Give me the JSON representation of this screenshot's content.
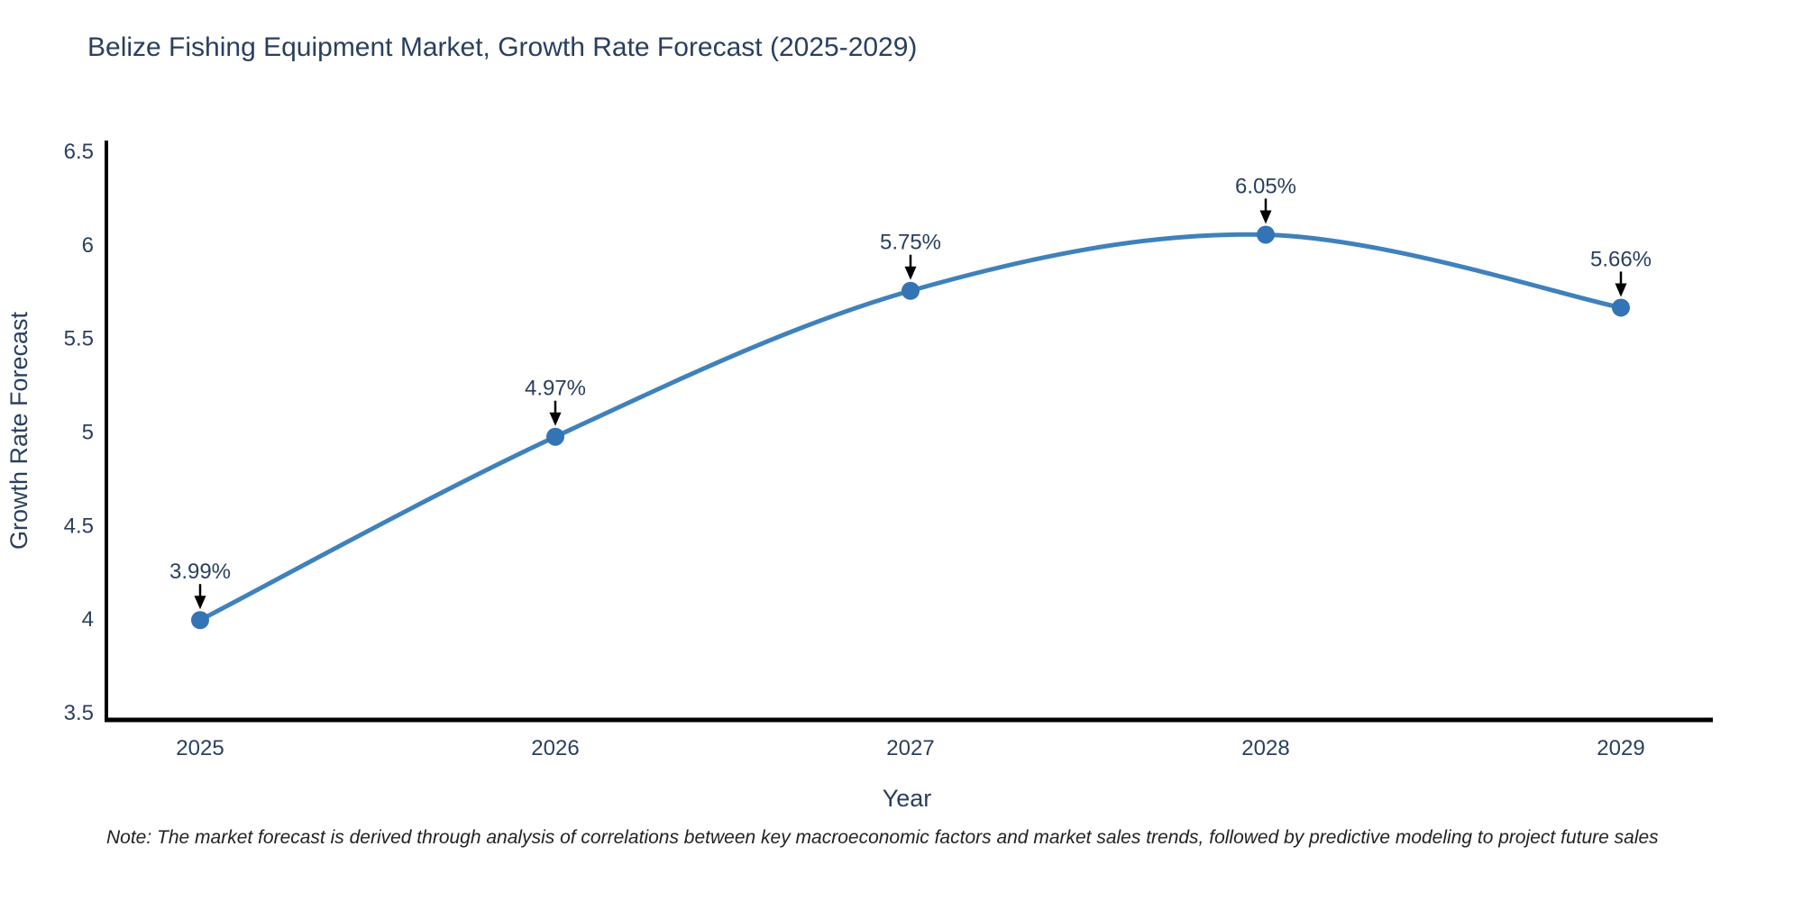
{
  "chart_data": {
    "type": "line",
    "title": "Belize Fishing Equipment Market, Growth Rate Forecast (2025-2029)",
    "xlabel": "Year",
    "ylabel": "Growth Rate Forecast",
    "categories": [
      "2025",
      "2026",
      "2027",
      "2028",
      "2029"
    ],
    "series": [
      {
        "name": "Growth Rate Forecast",
        "values": [
          3.99,
          4.97,
          5.75,
          6.05,
          5.66
        ]
      }
    ],
    "data_labels": [
      "3.99%",
      "4.97%",
      "5.75%",
      "6.05%",
      "5.66%"
    ],
    "ylim": [
      3.5,
      6.5
    ],
    "yticks": [
      6.5,
      6,
      5.5,
      5,
      4.5,
      4,
      3.5
    ],
    "ytick_labels": [
      "6.5",
      "6",
      "5.5",
      "5",
      "4.5",
      "4",
      "3.5"
    ],
    "line_shape": "spline",
    "grid": false,
    "legend": false,
    "note": "Note: The market forecast is derived through analysis of correlations between key macroeconomic factors and market sales trends, followed by predictive modeling to project future sales",
    "colors": {
      "line": "#3f81bb",
      "marker": "#3474b4",
      "axis": "#000000",
      "text": "#2a3f5f",
      "annotation_arrow": "#000000",
      "background": "#ffffff"
    }
  }
}
